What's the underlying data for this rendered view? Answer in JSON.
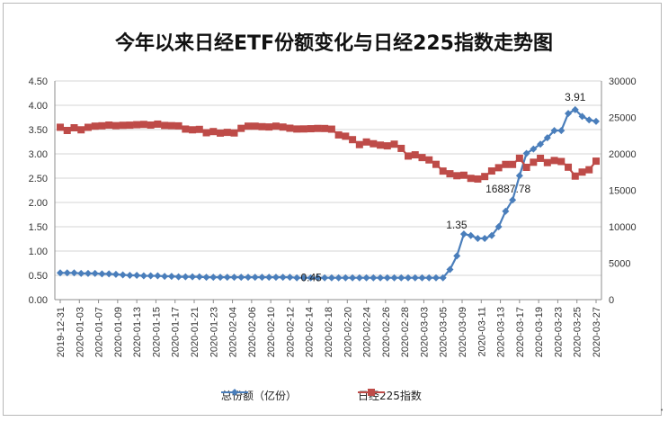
{
  "chart_data": {
    "type": "line",
    "title": "今年以来日经ETF份额变化与日经225指数走势图",
    "x_tick_labels": [
      "2019-12-31",
      "2020-01-03",
      "2020-01-07",
      "2020-01-09",
      "2020-01-13",
      "2020-01-15",
      "2020-01-17",
      "2020-01-21",
      "2020-01-23",
      "2020-02-04",
      "2020-02-06",
      "2020-02-10",
      "2020-02-12",
      "2020-02-14",
      "2020-02-18",
      "2020-02-20",
      "2020-02-24",
      "2020-02-26",
      "2020-02-28",
      "2020-03-03",
      "2020-03-05",
      "2020-03-09",
      "2020-03-11",
      "2020-03-13",
      "2020-03-17",
      "2020-03-19",
      "2020-03-23",
      "2020-03-25",
      "2020-03-27"
    ],
    "y_left": {
      "ticks": [
        "0.00",
        "0.50",
        "1.00",
        "1.50",
        "2.00",
        "2.50",
        "3.00",
        "3.50",
        "4.00",
        "4.50"
      ],
      "range": [
        0,
        4.5
      ]
    },
    "y_right": {
      "ticks": [
        "0",
        "5000",
        "10000",
        "15000",
        "20000",
        "25000",
        "30000"
      ],
      "range": [
        0,
        30000
      ]
    },
    "grid": true,
    "legend_position": "bottom",
    "series": [
      {
        "name": "总份额（亿份）",
        "axis": "left",
        "color": "#4a7ebb",
        "marker": "diamond",
        "values": [
          0.55,
          0.55,
          0.55,
          0.54,
          0.54,
          0.54,
          0.53,
          0.53,
          0.52,
          0.51,
          0.5,
          0.5,
          0.49,
          0.49,
          0.49,
          0.48,
          0.48,
          0.47,
          0.47,
          0.47,
          0.47,
          0.46,
          0.46,
          0.46,
          0.46,
          0.46,
          0.46,
          0.46,
          0.46,
          0.46,
          0.46,
          0.46,
          0.46,
          0.46,
          0.45,
          0.45,
          0.45,
          0.45,
          0.45,
          0.45,
          0.45,
          0.45,
          0.45,
          0.45,
          0.45,
          0.45,
          0.45,
          0.45,
          0.45,
          0.45,
          0.45,
          0.45,
          0.45,
          0.45,
          0.45,
          0.45,
          0.62,
          0.9,
          1.35,
          1.32,
          1.26,
          1.26,
          1.32,
          1.5,
          1.82,
          2.05,
          2.55,
          3.01,
          3.1,
          3.2,
          3.33,
          3.48,
          3.48,
          3.83,
          3.91,
          3.77,
          3.7,
          3.67
        ]
      },
      {
        "name": "日经225指数",
        "axis": "right",
        "color": "#be4b48",
        "marker": "square",
        "values": [
          23650,
          23210,
          23580,
          23300,
          23640,
          23800,
          23850,
          23950,
          23870,
          23920,
          23940,
          24000,
          24040,
          23950,
          24080,
          23900,
          23870,
          23840,
          23400,
          23300,
          23360,
          22900,
          23060,
          22850,
          22950,
          22870,
          23500,
          23800,
          23800,
          23730,
          23690,
          23800,
          23680,
          23520,
          23410,
          23420,
          23450,
          23490,
          23480,
          23390,
          22600,
          22420,
          21950,
          21270,
          21630,
          21390,
          21200,
          21100,
          21330,
          20750,
          19700,
          19870,
          19490,
          19170,
          18560,
          17640,
          17270,
          17000,
          17070,
          16640,
          16550,
          16890,
          17650,
          18100,
          18550,
          18550,
          19400,
          18150,
          18850,
          19390,
          18800,
          19090,
          18950,
          18170,
          16950,
          17500,
          17820,
          19000
        ]
      }
    ],
    "annotations": [
      {
        "label": "1.35",
        "series": "总份额（亿份）",
        "value": 1.35
      },
      {
        "label": "0.45",
        "series": "总份额（亿份）",
        "value": 0.45
      },
      {
        "label": "3.91",
        "series": "总份额（亿份）",
        "value": 3.91
      },
      {
        "label": "16887.78",
        "series": "日经225指数",
        "value": 16887.78
      }
    ]
  }
}
